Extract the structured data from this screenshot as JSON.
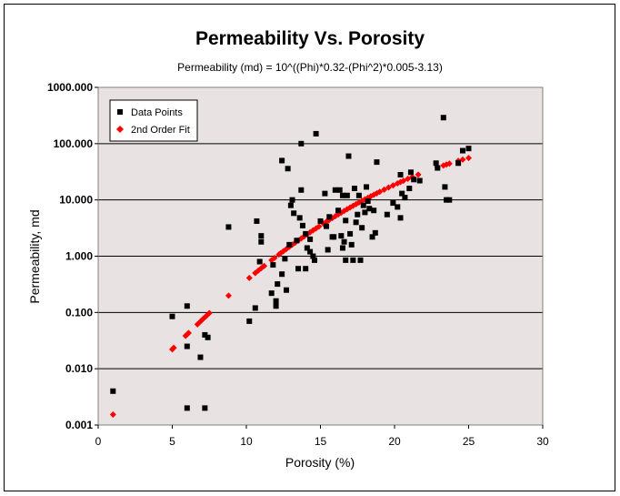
{
  "chart_data": {
    "type": "scatter",
    "title": "Permeability Vs. Porosity",
    "subtitle": "Permeability (md) = 10^((Phi)*0.32-(Phi^2)*0.005-3.13)",
    "xlabel": "Porosity (%)",
    "ylabel": "Permeability, md",
    "xlim": [
      0,
      30
    ],
    "ylim": [
      0.001,
      1000
    ],
    "y_scale": "log",
    "x_ticks": [
      0,
      5,
      10,
      15,
      20,
      25,
      30
    ],
    "x_tick_labels": [
      "0",
      "5",
      "10",
      "15",
      "20",
      "25",
      "30"
    ],
    "y_ticks": [
      0.001,
      0.01,
      0.1,
      1,
      10,
      100,
      1000
    ],
    "y_tick_labels": [
      "0.001",
      "0.010",
      "0.100",
      "1.000",
      "10.000",
      "100.000",
      "1000.000"
    ],
    "grid": "horizontal",
    "legend_position": "top-left",
    "plot_background": "#e8e2e2",
    "series": [
      {
        "name": "Data Points",
        "marker": "square",
        "color": "#000000",
        "points": [
          [
            1.0,
            0.004
          ],
          [
            5.0,
            0.085
          ],
          [
            6.0,
            0.13
          ],
          [
            6.0,
            0.025
          ],
          [
            6.0,
            0.002
          ],
          [
            6.9,
            0.016
          ],
          [
            7.2,
            0.04
          ],
          [
            7.4,
            0.036
          ],
          [
            7.2,
            0.002
          ],
          [
            8.8,
            3.3
          ],
          [
            10.2,
            0.07
          ],
          [
            10.6,
            0.12
          ],
          [
            10.7,
            4.2
          ],
          [
            11.0,
            2.3
          ],
          [
            11.0,
            1.8
          ],
          [
            10.9,
            0.8
          ],
          [
            11.7,
            0.22
          ],
          [
            11.8,
            0.7
          ],
          [
            12.0,
            0.16
          ],
          [
            12.1,
            0.32
          ],
          [
            12.0,
            0.13
          ],
          [
            12.4,
            0.48
          ],
          [
            12.4,
            50
          ],
          [
            12.6,
            0.9
          ],
          [
            12.7,
            0.25
          ],
          [
            12.8,
            36
          ],
          [
            12.9,
            1.6
          ],
          [
            13.0,
            8.0
          ],
          [
            13.1,
            10
          ],
          [
            13.2,
            5.8
          ],
          [
            13.4,
            1.9
          ],
          [
            13.5,
            0.6
          ],
          [
            13.6,
            4.8
          ],
          [
            13.7,
            100
          ],
          [
            13.7,
            15
          ],
          [
            13.8,
            3.5
          ],
          [
            14.0,
            2.5
          ],
          [
            14.0,
            0.6
          ],
          [
            14.1,
            1.4
          ],
          [
            14.3,
            1.2
          ],
          [
            14.3,
            2.0
          ],
          [
            14.5,
            1.0
          ],
          [
            14.6,
            0.85
          ],
          [
            14.7,
            150
          ],
          [
            15.0,
            4.2
          ],
          [
            15.3,
            13
          ],
          [
            15.4,
            3.4
          ],
          [
            15.5,
            1.3
          ],
          [
            15.6,
            5.0
          ],
          [
            15.9,
            2.2
          ],
          [
            16.0,
            15
          ],
          [
            16.2,
            6.5
          ],
          [
            16.3,
            15
          ],
          [
            16.4,
            2.3
          ],
          [
            16.5,
            1.4
          ],
          [
            16.6,
            1.8
          ],
          [
            16.7,
            0.85
          ],
          [
            16.7,
            4.3
          ],
          [
            16.8,
            12
          ],
          [
            16.9,
            60
          ],
          [
            17.0,
            2.5
          ],
          [
            17.1,
            1.6
          ],
          [
            17.2,
            0.85
          ],
          [
            17.3,
            16
          ],
          [
            17.4,
            4.0
          ],
          [
            17.5,
            5.5
          ],
          [
            17.6,
            12
          ],
          [
            17.7,
            0.85
          ],
          [
            17.8,
            3.2
          ],
          [
            17.9,
            8.0
          ],
          [
            18.0,
            6.0
          ],
          [
            18.1,
            17
          ],
          [
            18.2,
            9.5
          ],
          [
            18.3,
            7.0
          ],
          [
            18.5,
            2.2
          ],
          [
            18.6,
            6.5
          ],
          [
            18.7,
            2.6
          ],
          [
            18.8,
            47
          ],
          [
            19.5,
            5.5
          ],
          [
            19.9,
            8.8
          ],
          [
            20.2,
            7.5
          ],
          [
            20.4,
            4.8
          ],
          [
            20.4,
            28
          ],
          [
            20.5,
            13
          ],
          [
            20.7,
            11
          ],
          [
            21.0,
            16
          ],
          [
            21.1,
            31
          ],
          [
            21.3,
            23
          ],
          [
            21.7,
            22
          ],
          [
            22.8,
            45
          ],
          [
            22.9,
            37
          ],
          [
            23.3,
            290
          ],
          [
            23.4,
            17
          ],
          [
            23.5,
            10
          ],
          [
            23.7,
            10
          ],
          [
            24.3,
            45
          ],
          [
            24.6,
            75
          ],
          [
            25.0,
            82
          ],
          [
            16.5,
            12
          ],
          [
            15.8,
            2.2
          ]
        ]
      },
      {
        "name": "2nd Order Fit",
        "marker": "diamond",
        "color": "#ff0000",
        "x": [
          1.0,
          5.0,
          5.1,
          5.9,
          6.0,
          6.1,
          6.7,
          6.9,
          7.1,
          7.3,
          7.5,
          8.8,
          10.2,
          10.6,
          10.8,
          11.0,
          11.2,
          11.7,
          11.9,
          12.2,
          12.3,
          12.5,
          12.7,
          12.9,
          13.1,
          13.3,
          13.5,
          13.7,
          13.9,
          14.1,
          14.3,
          14.5,
          14.7,
          14.9,
          15.2,
          15.4,
          15.6,
          15.8,
          16.0,
          16.2,
          16.4,
          16.6,
          16.8,
          17.0,
          17.2,
          17.4,
          17.6,
          17.8,
          18.0,
          18.2,
          18.4,
          18.6,
          18.8,
          19.0,
          19.3,
          19.6,
          19.9,
          20.2,
          20.4,
          20.6,
          20.9,
          21.2,
          21.6,
          22.9,
          23.3,
          23.5,
          23.7,
          24.3,
          24.6,
          25.0
        ]
      }
    ]
  }
}
